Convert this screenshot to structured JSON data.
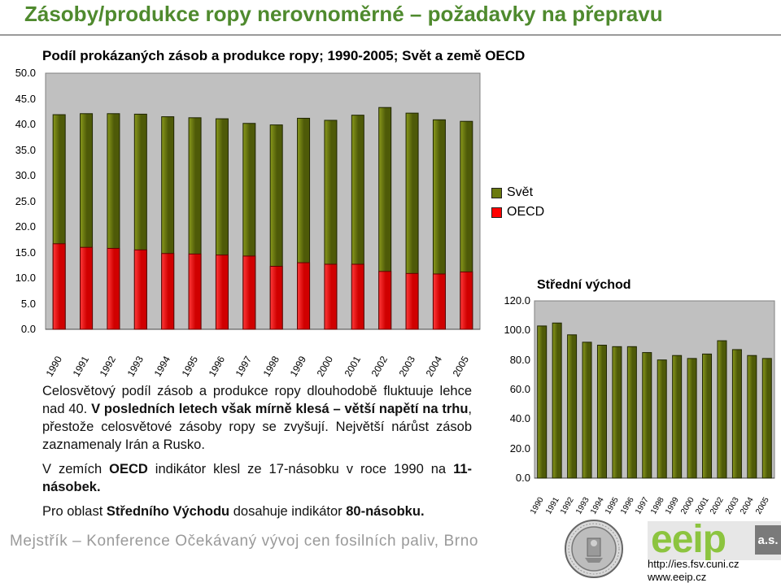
{
  "header": {
    "title": "Zásoby/produkce ropy nerovnoměrné – požadavky na přepravu"
  },
  "chart_data": [
    {
      "type": "bar",
      "title": "Podíl prokázaných zásob a produkce ropy; 1990-2005; Svět a země OECD",
      "categories": [
        "1990",
        "1991",
        "1992",
        "1993",
        "1994",
        "1995",
        "1996",
        "1997",
        "1998",
        "1999",
        "2000",
        "2001",
        "2002",
        "2003",
        "2004",
        "2005"
      ],
      "series": [
        {
          "name": "Svět",
          "color": "#6b7a10",
          "values": [
            41.9,
            42.1,
            42.1,
            42.0,
            41.5,
            41.3,
            41.1,
            40.2,
            39.9,
            41.2,
            40.8,
            41.8,
            43.3,
            42.2,
            40.9,
            40.6
          ]
        },
        {
          "name": "OECD",
          "color": "#ff0000",
          "values": [
            16.7,
            16.0,
            15.8,
            15.5,
            14.8,
            14.7,
            14.5,
            14.3,
            12.3,
            13.0,
            12.7,
            12.7,
            11.3,
            10.9,
            10.8,
            11.2
          ]
        }
      ],
      "yticks": [
        "0.0",
        "5.0",
        "10.0",
        "15.0",
        "20.0",
        "25.0",
        "30.0",
        "35.0",
        "40.0",
        "45.0",
        "50.0"
      ],
      "ylim": [
        0,
        50
      ],
      "legend": "right"
    },
    {
      "type": "bar",
      "title": "Střední východ",
      "categories": [
        "1990",
        "1991",
        "1992",
        "1993",
        "1994",
        "1995",
        "1996",
        "1997",
        "1998",
        "1999",
        "2000",
        "2001",
        "2002",
        "2003",
        "2004",
        "2005"
      ],
      "series": [
        {
          "color": "#6b7a10",
          "values": [
            103,
            105,
            97,
            92,
            90,
            89,
            89,
            85,
            80,
            83,
            81,
            84,
            93,
            87,
            83,
            81
          ]
        }
      ],
      "yticks": [
        "0.0",
        "20.0",
        "40.0",
        "60.0",
        "80.0",
        "100.0",
        "120.0"
      ],
      "ylim": [
        0,
        120
      ]
    }
  ],
  "body": {
    "p1_a": "Celosvětový podíl zásob a produkce ropy dlouhodobě fluktuuje lehce nad 40. ",
    "p1_b": "V posledních letech však mírně klesá – větší napětí na trhu",
    "p1_c": ", přestože celosvětové zásoby ropy se zvyšují. Největší nárůst zásob zaznamenaly Irán a Rusko.",
    "p2_a": "V zemích ",
    "p2_b": "OECD",
    "p2_c": " indikátor klesl ze 17-násobku v roce 1990 na ",
    "p2_d": "11-násobek.",
    "p3_a": "Pro oblast ",
    "p3_b": "Středního Východu",
    "p3_c": " dosahuje indikátor ",
    "p3_d": "80-násobku."
  },
  "footer": {
    "text": "Mejstřík – Konference Očekávaný vývoj cen fosilních paliv, Brno",
    "logo_word": "eeip",
    "logo_suffix": "a.s.",
    "url1": "http://ies.fsv.cuni.cz",
    "url2": "www.eeip.cz"
  }
}
